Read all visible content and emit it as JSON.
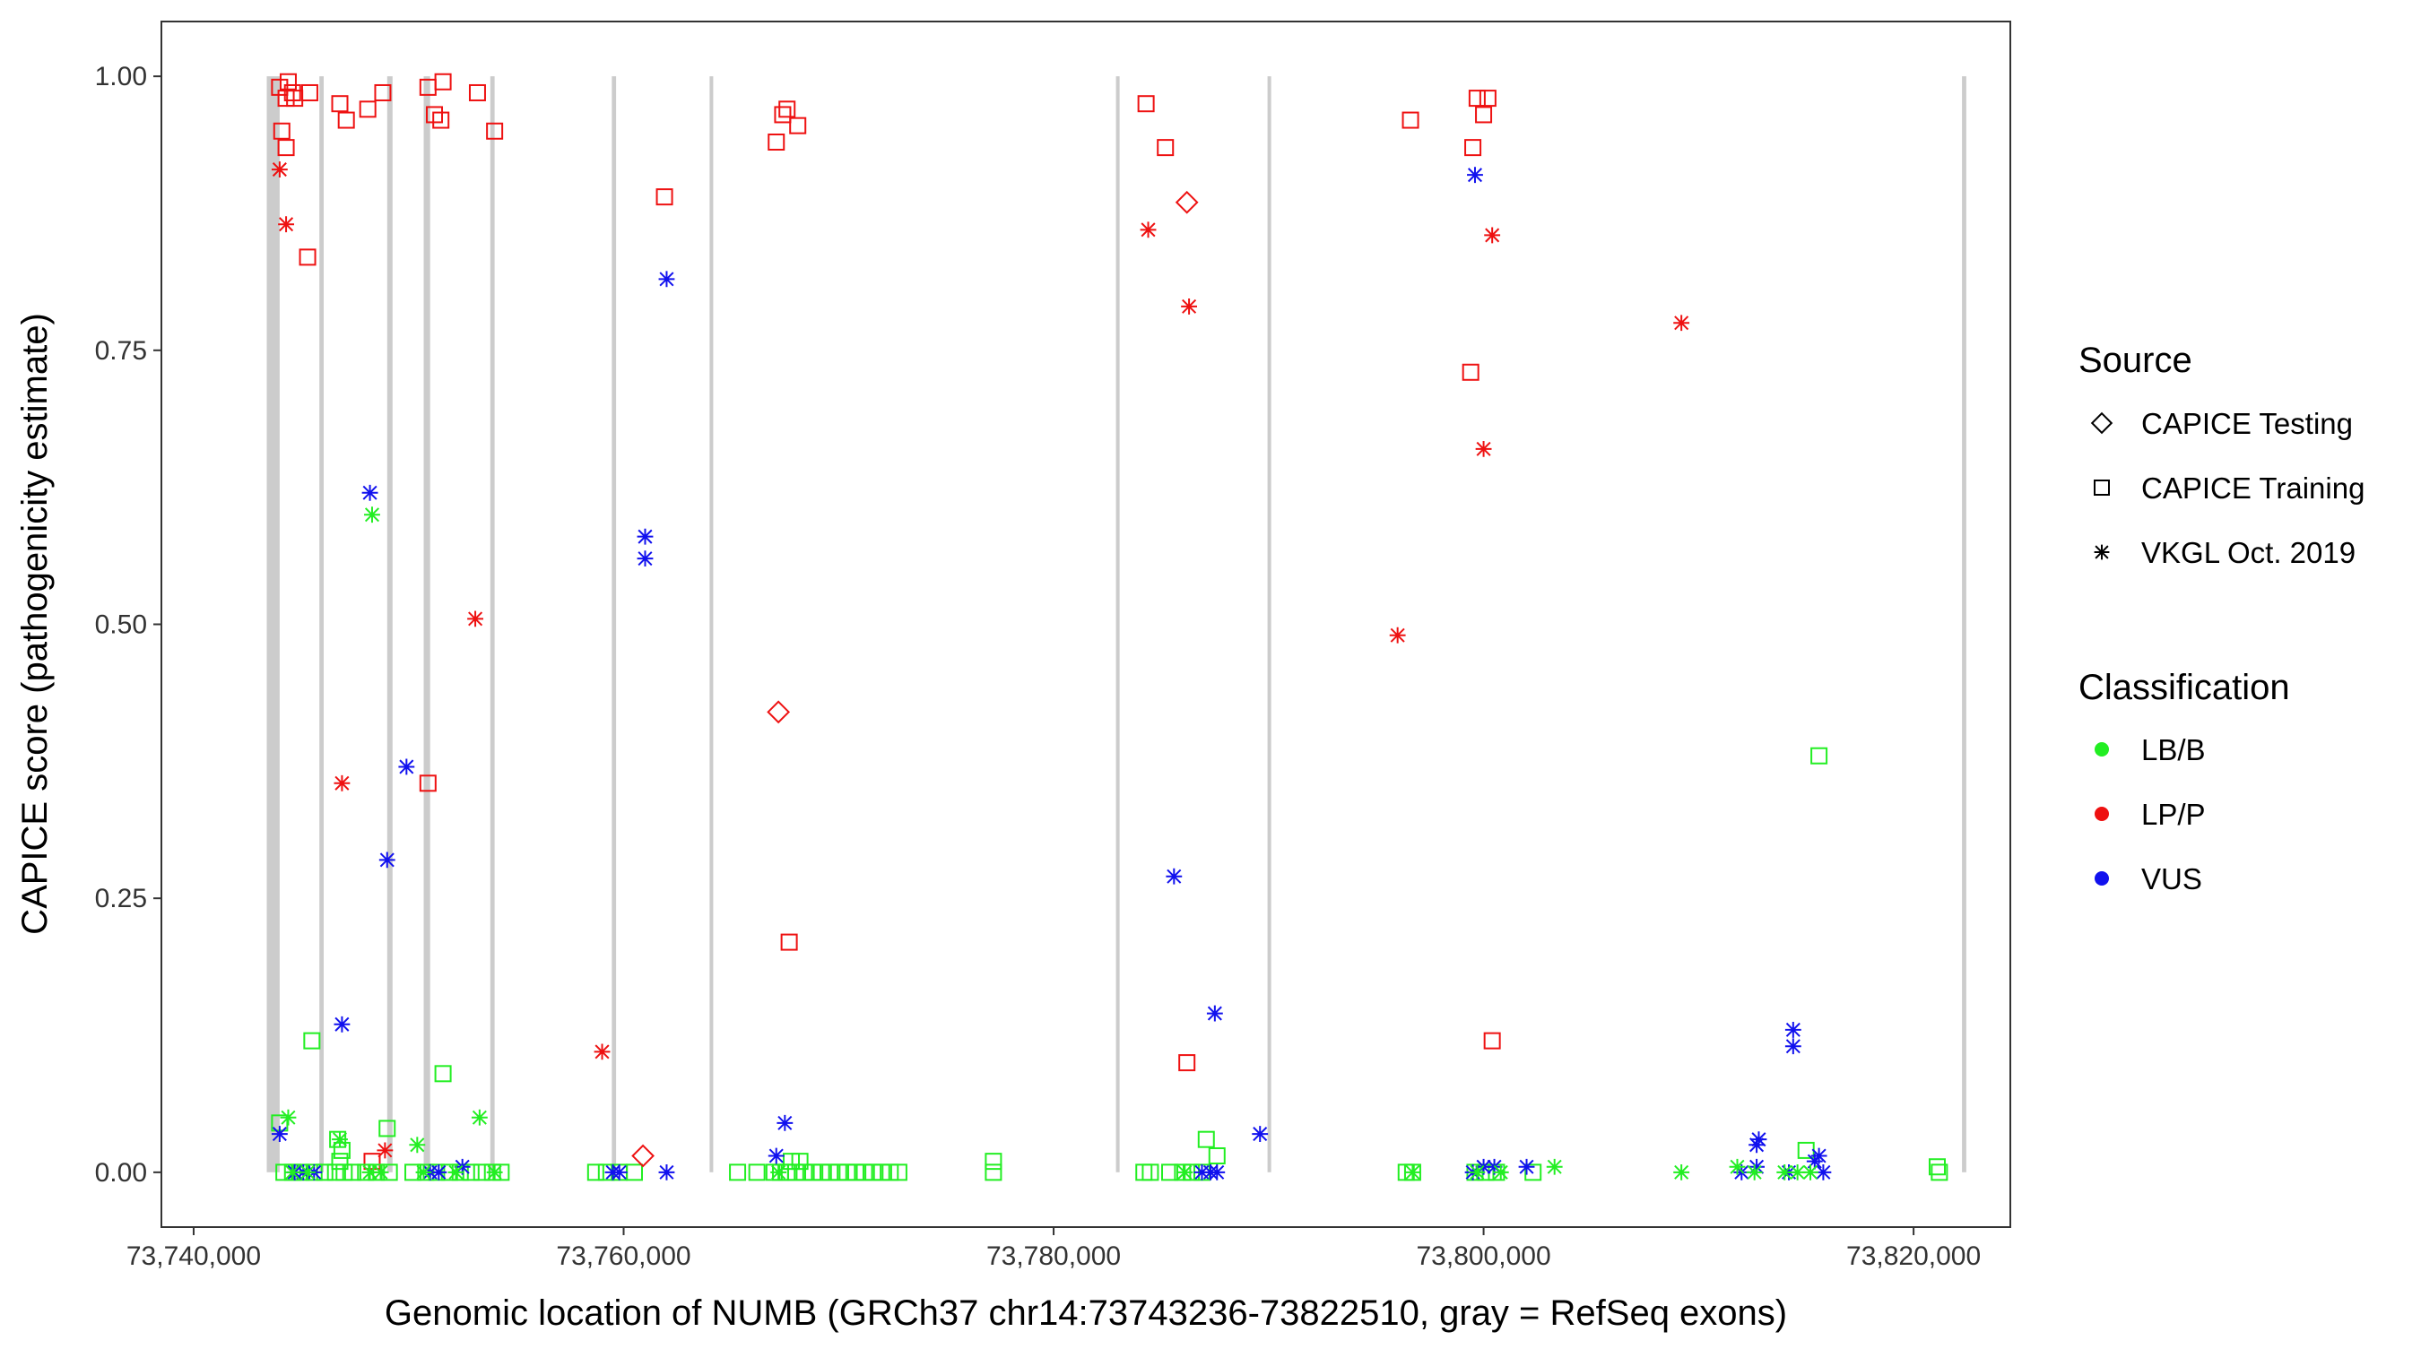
{
  "chart_data": {
    "type": "scatter",
    "title": "",
    "xlabel": "Genomic location of NUMB (GRCh37 chr14:73743236-73822510, gray = RefSeq exons)",
    "ylabel": "CAPICE score (pathogenicity estimate)",
    "xlim": [
      73738500,
      73824500
    ],
    "ylim": [
      -0.05,
      1.05
    ],
    "x_ticks": [
      73740000,
      73760000,
      73780000,
      73800000,
      73820000
    ],
    "x_tick_labels": [
      "73,740,000",
      "73,760,000",
      "73,780,000",
      "73,800,000",
      "73,820,000"
    ],
    "y_ticks": [
      0,
      0.25,
      0.5,
      0.75,
      1
    ],
    "y_tick_labels": [
      "0.00",
      "0.25",
      "0.50",
      "0.75",
      "1.00"
    ],
    "grid": false,
    "exons": [
      {
        "start": 73743400,
        "end": 73744000
      },
      {
        "start": 73745850,
        "end": 73746050
      },
      {
        "start": 73749000,
        "end": 73749250
      },
      {
        "start": 73750700,
        "end": 73751000
      },
      {
        "start": 73753800,
        "end": 73754000
      },
      {
        "start": 73759450,
        "end": 73759650
      },
      {
        "start": 73764000,
        "end": 73764150
      },
      {
        "start": 73782900,
        "end": 73783050
      },
      {
        "start": 73789950,
        "end": 73790100
      },
      {
        "start": 73822250,
        "end": 73822450
      }
    ],
    "legend": {
      "position": "right",
      "source_title": "Source",
      "classification_title": "Classification",
      "sources": [
        {
          "key": "testing",
          "label": "CAPICE Testing",
          "shape": "diamond"
        },
        {
          "key": "training",
          "label": "CAPICE Training",
          "shape": "square"
        },
        {
          "key": "vkgl",
          "label": "VKGL Oct. 2019",
          "shape": "asterisk"
        }
      ],
      "classes": [
        {
          "key": "LB/B",
          "label": "LB/B",
          "color": "#22ee22"
        },
        {
          "key": "LP/P",
          "label": "LP/P",
          "color": "#ee1111"
        },
        {
          "key": "VUS",
          "label": "VUS",
          "color": "#1111ee"
        }
      ]
    },
    "colors": {
      "LB/B": "#22ee22",
      "LP/P": "#ee1111",
      "VUS": "#1111ee",
      "exon": "#cccccc"
    },
    "series": [
      {
        "name": "CAPICE Training",
        "source": "training",
        "class": "LP/P",
        "points": [
          [
            73744000,
            0.99
          ],
          [
            73744300,
            0.98
          ],
          [
            73744400,
            0.995
          ],
          [
            73744600,
            0.985
          ],
          [
            73744700,
            0.98
          ],
          [
            73744100,
            0.95
          ],
          [
            73744300,
            0.935
          ],
          [
            73745400,
            0.985
          ],
          [
            73746800,
            0.975
          ],
          [
            73747100,
            0.96
          ],
          [
            73748100,
            0.97
          ],
          [
            73748800,
            0.985
          ],
          [
            73750900,
            0.99
          ],
          [
            73751200,
            0.965
          ],
          [
            73751500,
            0.96
          ],
          [
            73751600,
            0.995
          ],
          [
            73753200,
            0.985
          ],
          [
            73754000,
            0.95
          ],
          [
            73745300,
            0.835
          ],
          [
            73750900,
            0.355
          ],
          [
            73761900,
            0.89
          ],
          [
            73767100,
            0.94
          ],
          [
            73767400,
            0.965
          ],
          [
            73767600,
            0.97
          ],
          [
            73768100,
            0.955
          ],
          [
            73767700,
            0.21
          ],
          [
            73784300,
            0.975
          ],
          [
            73785200,
            0.935
          ],
          [
            73786200,
            0.1
          ],
          [
            73796600,
            0.96
          ],
          [
            73799500,
            0.935
          ],
          [
            73799700,
            0.98
          ],
          [
            73800000,
            0.965
          ],
          [
            73800200,
            0.98
          ],
          [
            73799400,
            0.73
          ],
          [
            73800400,
            0.12
          ],
          [
            73748300,
            0.01
          ]
        ]
      },
      {
        "name": "CAPICE Training",
        "source": "training",
        "class": "LB/B",
        "points": [
          [
            73745500,
            0.12
          ],
          [
            73751600,
            0.09
          ],
          [
            73815600,
            0.38
          ],
          [
            73749000,
            0.04
          ],
          [
            73744000,
            0.045
          ],
          [
            73746700,
            0.03
          ],
          [
            73746900,
            0.02
          ],
          [
            73746800,
            0.01
          ],
          [
            73787100,
            0.03
          ],
          [
            73787600,
            0.015
          ],
          [
            73777200,
            0.01
          ],
          [
            73815000,
            0.02
          ],
          [
            73767800,
            0.01
          ],
          [
            73768200,
            0.01
          ],
          [
            73744200,
            0.0
          ],
          [
            73744600,
            0.0
          ],
          [
            73745000,
            0.0
          ],
          [
            73745600,
            0.0
          ],
          [
            73746100,
            0.0
          ],
          [
            73746600,
            0.0
          ],
          [
            73747000,
            0.0
          ],
          [
            73747400,
            0.0
          ],
          [
            73748000,
            0.0
          ],
          [
            73748500,
            0.0
          ],
          [
            73749100,
            0.0
          ],
          [
            73750200,
            0.0
          ],
          [
            73750800,
            0.0
          ],
          [
            73751300,
            0.0
          ],
          [
            73751900,
            0.0
          ],
          [
            73752400,
            0.0
          ],
          [
            73752900,
            0.0
          ],
          [
            73753400,
            0.0
          ],
          [
            73753900,
            0.0
          ],
          [
            73754300,
            0.0
          ],
          [
            73758700,
            0.0
          ],
          [
            73759200,
            0.0
          ],
          [
            73759800,
            0.0
          ],
          [
            73760500,
            0.0
          ],
          [
            73765300,
            0.0
          ],
          [
            73766200,
            0.0
          ],
          [
            73767000,
            0.0
          ],
          [
            73767300,
            0.0
          ],
          [
            73767600,
            0.0
          ],
          [
            73768000,
            0.0
          ],
          [
            73768400,
            0.0
          ],
          [
            73768800,
            0.0
          ],
          [
            73769200,
            0.0
          ],
          [
            73769600,
            0.0
          ],
          [
            73770000,
            0.0
          ],
          [
            73770400,
            0.0
          ],
          [
            73770800,
            0.0
          ],
          [
            73771200,
            0.0
          ],
          [
            73771600,
            0.0
          ],
          [
            73772000,
            0.0
          ],
          [
            73772400,
            0.0
          ],
          [
            73772800,
            0.0
          ],
          [
            73777200,
            0.0
          ],
          [
            73784200,
            0.0
          ],
          [
            73784500,
            0.0
          ],
          [
            73785400,
            0.0
          ],
          [
            73786000,
            0.0
          ],
          [
            73786400,
            0.0
          ],
          [
            73786900,
            0.0
          ],
          [
            73796400,
            0.0
          ],
          [
            73796700,
            0.0
          ],
          [
            73799600,
            0.0
          ],
          [
            73800100,
            0.0
          ],
          [
            73800600,
            0.0
          ],
          [
            73802300,
            0.0
          ],
          [
            73821100,
            0.005
          ],
          [
            73821200,
            0.0
          ]
        ]
      },
      {
        "name": "CAPICE Testing",
        "source": "testing",
        "class": "LP/P",
        "points": [
          [
            73767200,
            0.42
          ],
          [
            73786200,
            0.885
          ],
          [
            73760900,
            0.015
          ]
        ]
      },
      {
        "name": "VKGL Oct. 2019",
        "source": "vkgl",
        "class": "LP/P",
        "points": [
          [
            73744000,
            0.915
          ],
          [
            73744300,
            0.865
          ],
          [
            73746900,
            0.355
          ],
          [
            73748900,
            0.02
          ],
          [
            73753100,
            0.505
          ],
          [
            73759000,
            0.11
          ],
          [
            73784400,
            0.86
          ],
          [
            73786300,
            0.79
          ],
          [
            73796000,
            0.49
          ],
          [
            73800000,
            0.66
          ],
          [
            73800400,
            0.855
          ],
          [
            73809200,
            0.775
          ]
        ]
      },
      {
        "name": "VKGL Oct. 2019",
        "source": "vkgl",
        "class": "VUS",
        "points": [
          [
            73748200,
            0.62
          ],
          [
            73746900,
            0.135
          ],
          [
            73749000,
            0.285
          ],
          [
            73749900,
            0.37
          ],
          [
            73761000,
            0.58
          ],
          [
            73761000,
            0.56
          ],
          [
            73762000,
            0.815
          ],
          [
            73744000,
            0.035
          ],
          [
            73767500,
            0.045
          ],
          [
            73767100,
            0.015
          ],
          [
            73785600,
            0.27
          ],
          [
            73787500,
            0.145
          ],
          [
            73789600,
            0.035
          ],
          [
            73799600,
            0.91
          ],
          [
            73812800,
            0.03
          ],
          [
            73812700,
            0.025
          ],
          [
            73814400,
            0.13
          ],
          [
            73814400,
            0.115
          ],
          [
            73815600,
            0.015
          ],
          [
            73744700,
            0.0
          ],
          [
            73745100,
            0.0
          ],
          [
            73745600,
            0.0
          ],
          [
            73751000,
            0.0
          ],
          [
            73751400,
            0.0
          ],
          [
            73752500,
            0.005
          ],
          [
            73759500,
            0.0
          ],
          [
            73759800,
            0.0
          ],
          [
            73762000,
            0.0
          ],
          [
            73786900,
            0.0
          ],
          [
            73787300,
            0.0
          ],
          [
            73787600,
            0.0
          ],
          [
            73799500,
            0.0
          ],
          [
            73800000,
            0.005
          ],
          [
            73800500,
            0.005
          ],
          [
            73802000,
            0.005
          ],
          [
            73812000,
            0.0
          ],
          [
            73812700,
            0.005
          ],
          [
            73814200,
            0.0
          ],
          [
            73815800,
            0.0
          ],
          [
            73815400,
            0.01
          ]
        ]
      },
      {
        "name": "VKGL Oct. 2019",
        "source": "vkgl",
        "class": "LB/B",
        "points": [
          [
            73748300,
            0.6
          ],
          [
            73744400,
            0.05
          ],
          [
            73746800,
            0.03
          ],
          [
            73750400,
            0.025
          ],
          [
            73753300,
            0.05
          ],
          [
            73744600,
            0.0
          ],
          [
            73745300,
            0.0
          ],
          [
            73748200,
            0.0
          ],
          [
            73748700,
            0.0
          ],
          [
            73750700,
            0.0
          ],
          [
            73752200,
            0.0
          ],
          [
            73754000,
            0.0
          ],
          [
            73767200,
            0.0
          ],
          [
            73786100,
            0.0
          ],
          [
            73796700,
            0.0
          ],
          [
            73799700,
            0.0
          ],
          [
            73800800,
            0.0
          ],
          [
            73803300,
            0.005
          ],
          [
            73809200,
            0.0
          ],
          [
            73811800,
            0.005
          ],
          [
            73812600,
            0.0
          ],
          [
            73814000,
            0.0
          ],
          [
            73814600,
            0.0
          ],
          [
            73815200,
            0.0
          ]
        ]
      }
    ]
  }
}
